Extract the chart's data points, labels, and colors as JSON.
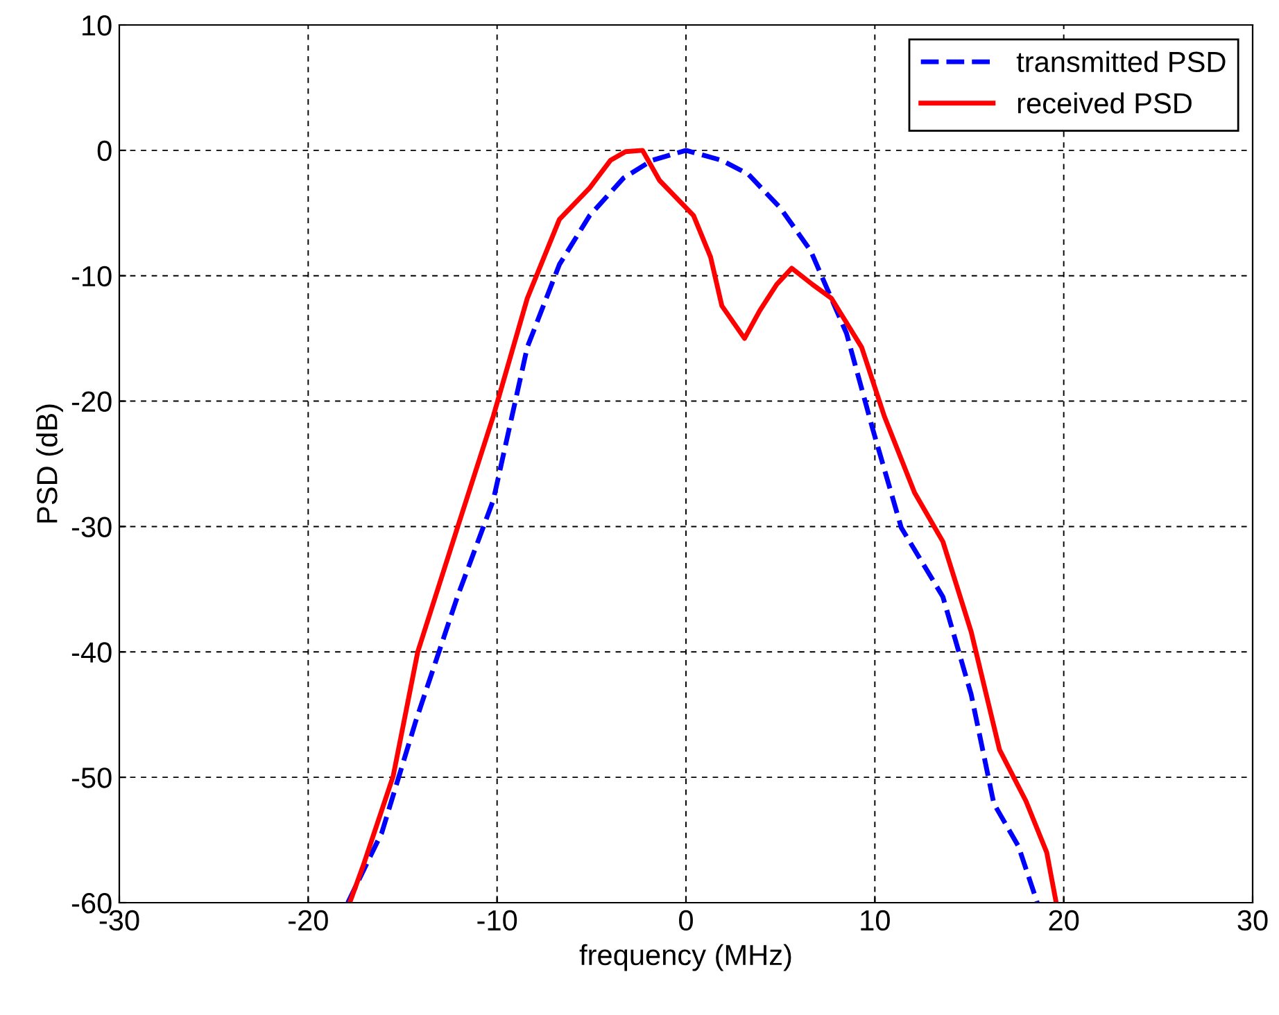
{
  "chart_data": {
    "type": "line",
    "xlabel": "frequency (MHz)",
    "ylabel": "PSD (dB)",
    "xlim": [
      -30,
      30
    ],
    "xticks": [
      -30,
      -20,
      -10,
      0,
      10,
      20,
      30
    ],
    "ylim": [
      -60,
      10
    ],
    "yticks": [
      -60,
      -50,
      -40,
      -30,
      -20,
      -10,
      0,
      10
    ],
    "grid": true,
    "legend": "top right",
    "series": [
      {
        "name": "transmitted PSD",
        "color": "#0000ff",
        "line_style": "dashed",
        "x": [
          -17.9,
          -16.1,
          -14.3,
          -12.1,
          -10.2,
          -8.4,
          -6.7,
          -5.1,
          -3.3,
          -1.8,
          0.0,
          1.9,
          3.3,
          5.0,
          6.6,
          8.5,
          9.9,
          11.4,
          13.6,
          15.1,
          16.3,
          17.6,
          18.6
        ],
        "values": [
          -60,
          -54.4,
          -45.5,
          -35.6,
          -27.9,
          -15.7,
          -9.1,
          -5.2,
          -2.2,
          -0.8,
          0,
          -0.8,
          -1.9,
          -4.6,
          -8.0,
          -14.6,
          -22.3,
          -30.1,
          -35.6,
          -43.4,
          -52.1,
          -55.5,
          -60
        ]
      },
      {
        "name": "received PSD",
        "color": "#ff0000",
        "line_style": "solid",
        "x": [
          -17.8,
          -17.1,
          -15.5,
          -14.2,
          -12.1,
          -10.2,
          -8.4,
          -6.7,
          -5.1,
          -4.0,
          -3.2,
          -2.3,
          -1.4,
          0.4,
          1.3,
          1.9,
          3.1,
          3.9,
          4.8,
          5.6,
          6.7,
          7.7,
          9.3,
          10.5,
          12.1,
          13.6,
          15.1,
          16.6,
          18.0,
          19.1,
          19.6
        ],
        "values": [
          -60,
          -57.1,
          -49.9,
          -40,
          -30.1,
          -21.2,
          -11.8,
          -5.5,
          -3,
          -0.8,
          -0.1,
          0,
          -2.4,
          -5.2,
          -8.5,
          -12.4,
          -15.0,
          -12.8,
          -10.7,
          -9.4,
          -10.7,
          -11.8,
          -15.7,
          -21.2,
          -27.3,
          -31.2,
          -38.4,
          -47.8,
          -51.9,
          -56,
          -60
        ]
      }
    ]
  }
}
